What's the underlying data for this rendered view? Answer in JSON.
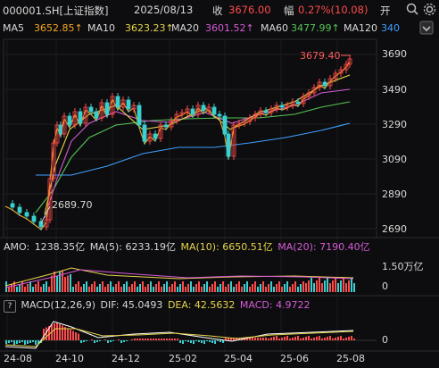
{
  "header": {
    "symbol": "000001.SH[上证指数]",
    "date": "2025/08/13",
    "close_label": "收",
    "close_value": "3676.00",
    "change_label": "幅",
    "change_value": "0.27%(10.08)",
    "open_label": "开",
    "colors": {
      "up": "#ff4a4a",
      "text": "#d8d8d8"
    }
  },
  "ma_legend": [
    {
      "name": "MA5",
      "value": "3652.85↑",
      "color": "#f5a623"
    },
    {
      "name": "MA10",
      "value": "3623.23↑",
      "color": "#e6d44a"
    },
    {
      "name": "MA20",
      "value": "3601.52↑",
      "color": "#d65ad6"
    },
    {
      "name": "MA60",
      "value": "3477.99↑",
      "color": "#56c456"
    },
    {
      "name": "MA120",
      "value": "340",
      "color": "#3f9fff"
    }
  ],
  "price_axis": [
    "3690",
    "3490",
    "3290",
    "3090",
    "2890",
    "2690"
  ],
  "annotations": {
    "high": "3679.40",
    "low": "2689.70"
  },
  "amo_legend": {
    "label": "AMO:",
    "amo": "1238.35亿",
    "ma5": "MA(5): 6233.19亿",
    "ma10": "MA(10): 6650.51亿",
    "ma20": "MA(20): 7190.40亿",
    "axis_top": "1.50万亿",
    "axis_bottom": "0"
  },
  "macd_legend": {
    "help": "?",
    "title": "MACD(12,26,9)",
    "dif": "DIF: 45.0493",
    "dea": "DEA: 42.5632",
    "macd": "MACD: 4.9722",
    "axis_zero": "0"
  },
  "date_axis": [
    "24-08",
    "24-10",
    "24-12",
    "25-02",
    "25-04",
    "25-06",
    "25-08"
  ],
  "icons": [
    "search-icon",
    "settings-icon",
    "expand-icon"
  ]
}
